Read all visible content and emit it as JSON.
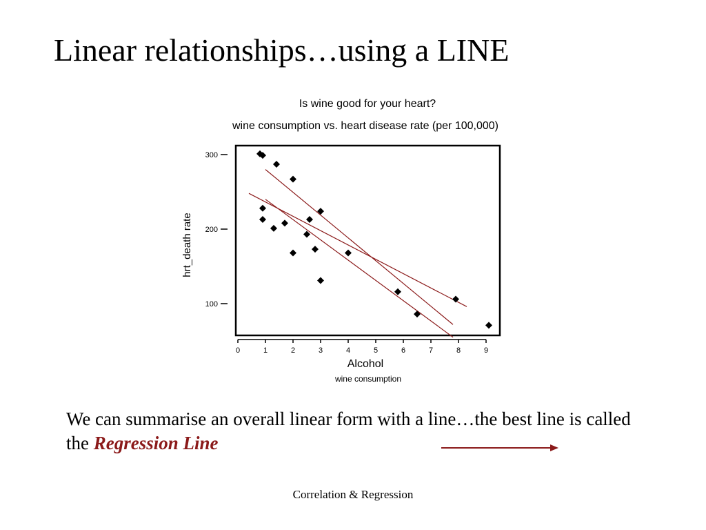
{
  "slide": {
    "title": "Linear relationships…using a LINE",
    "body_text": "We can summarise an overall linear form with a line…the best line is called the ",
    "body_emphasis": "Regression Line",
    "footer": "Correlation & Regression"
  },
  "colors": {
    "regression_line": "#8b1a1a",
    "arrow": "#8b1a1a",
    "points": "#000000"
  },
  "chart_data": {
    "type": "scatter",
    "title": "Is wine good for your heart?",
    "subtitle": "wine consumption vs. heart disease rate (per 100,000)",
    "xlabel": "Alcohol",
    "xlabel_sub": "wine consumption",
    "ylabel": "hrt_death rate",
    "xlim": [
      0,
      9.5
    ],
    "ylim": [
      50,
      310
    ],
    "x_ticks": [
      0,
      1,
      2,
      3,
      4,
      5,
      6,
      7,
      8,
      9
    ],
    "y_ticks": [
      100,
      200,
      300
    ],
    "grid": false,
    "points": [
      {
        "x": 0.8,
        "y": 301
      },
      {
        "x": 0.9,
        "y": 299
      },
      {
        "x": 1.4,
        "y": 287
      },
      {
        "x": 2.0,
        "y": 267
      },
      {
        "x": 0.9,
        "y": 228
      },
      {
        "x": 0.9,
        "y": 213
      },
      {
        "x": 1.3,
        "y": 201
      },
      {
        "x": 1.7,
        "y": 208
      },
      {
        "x": 2.5,
        "y": 193
      },
      {
        "x": 2.6,
        "y": 213
      },
      {
        "x": 3.0,
        "y": 224
      },
      {
        "x": 2.8,
        "y": 173
      },
      {
        "x": 2.0,
        "y": 168
      },
      {
        "x": 3.0,
        "y": 131
      },
      {
        "x": 4.0,
        "y": 168
      },
      {
        "x": 5.8,
        "y": 116
      },
      {
        "x": 6.5,
        "y": 86
      },
      {
        "x": 7.9,
        "y": 106
      },
      {
        "x": 9.1,
        "y": 71
      }
    ],
    "lines": [
      {
        "x1": 1.0,
        "y1": 280,
        "x2": 7.8,
        "y2": 72
      },
      {
        "x1": 0.4,
        "y1": 248,
        "x2": 8.3,
        "y2": 96
      },
      {
        "x1": 1.0,
        "y1": 240,
        "x2": 7.8,
        "y2": 55
      }
    ]
  }
}
